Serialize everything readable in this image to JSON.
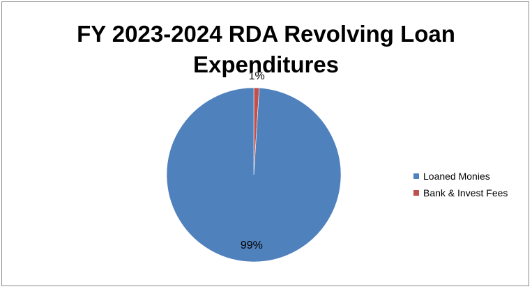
{
  "chart_data": {
    "type": "pie",
    "title": "FY 2023-2024 RDA Revolving Loan Expenditures",
    "categories": [
      "Loaned Monies",
      "Bank & Invest Fees"
    ],
    "values": [
      99,
      1
    ],
    "data_labels": [
      "99%",
      "1%"
    ],
    "colors": [
      "#4F81BD",
      "#C0504D"
    ],
    "legend_placement": "right"
  }
}
